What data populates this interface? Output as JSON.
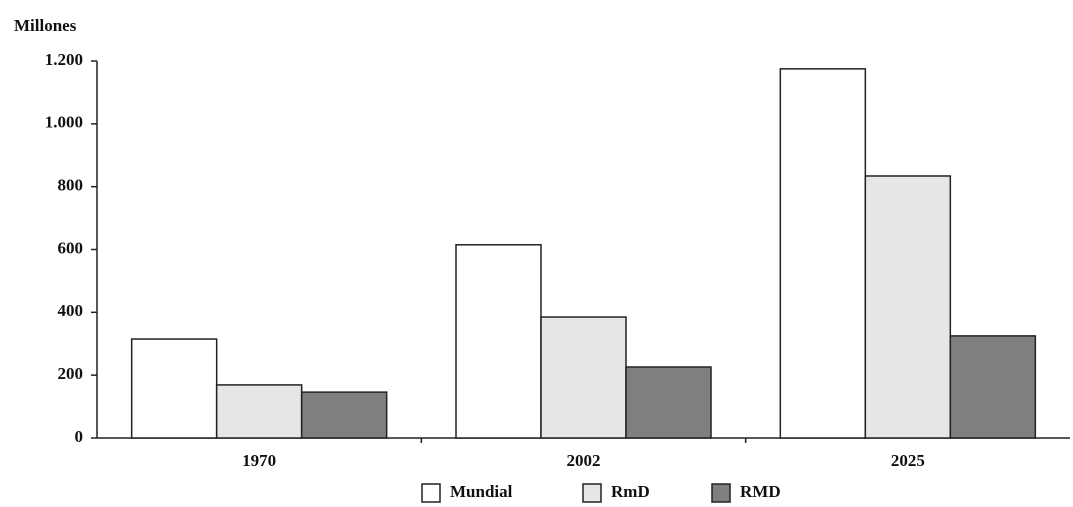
{
  "chart_data": {
    "type": "bar",
    "y_label": "Millones",
    "categories": [
      "1970",
      "2002",
      "2025"
    ],
    "series": [
      {
        "name": "Mundial",
        "color": "#ffffff",
        "values": [
          315,
          615,
          1175
        ]
      },
      {
        "name": "RmD",
        "color": "#e6e6e6",
        "values": [
          169,
          385,
          834
        ]
      },
      {
        "name": "RMD",
        "color": "#7f7f7f",
        "values": [
          146,
          226,
          325
        ]
      }
    ],
    "ylim": [
      0,
      1200
    ],
    "yticks": [
      0,
      200,
      400,
      600,
      800,
      {
        "value": 1000,
        "label": "1.000"
      },
      {
        "value": 1200,
        "label": "1.200"
      }
    ],
    "legend": "bottom"
  }
}
